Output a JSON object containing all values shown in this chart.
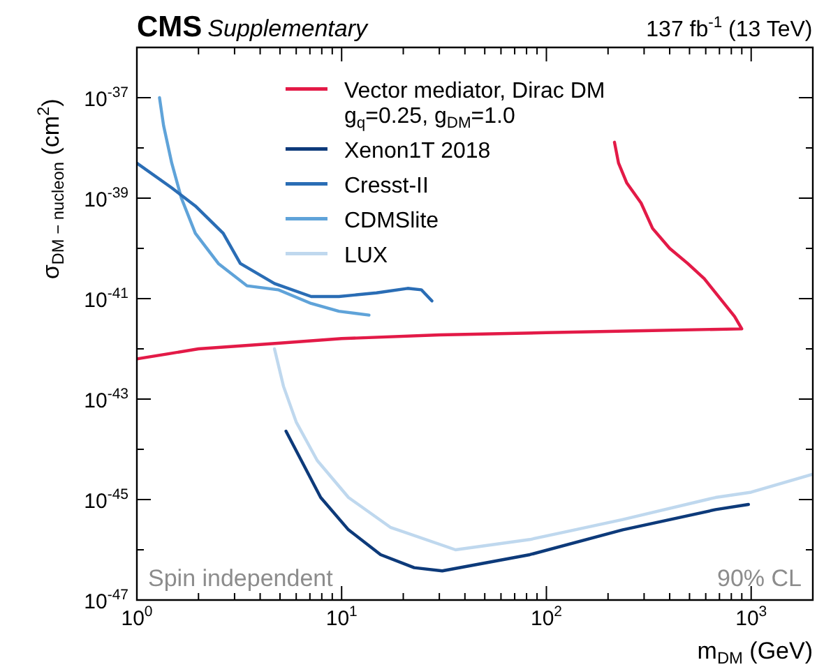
{
  "chart_data": {
    "type": "line",
    "title": "CMS",
    "subtitle": "Supplementary",
    "xlabel": "m$_{DM}$ (GeV)",
    "ylabel": "σ$_{DM − nucleon}$ (cm$^{2}$)",
    "annotations": [
      "137 fb$^{-1}$ (13 TeV)",
      "Spin independent",
      "90% CL"
    ],
    "log": "xy",
    "xlim": [
      1,
      2000
    ],
    "ylim": [
      1e-47,
      1e-36
    ],
    "xticks": [
      {
        "value": 1,
        "label": "10$^{0}$"
      },
      {
        "value": 10,
        "label": "10$^{1}$"
      },
      {
        "value": 100,
        "label": "10$^{2}$"
      },
      {
        "value": 1000,
        "label": "10$^{3}$"
      }
    ],
    "yticks": [
      {
        "value": 1e-47,
        "label": "10$^{-47}$"
      },
      {
        "value": 1e-45,
        "label": "10$^{-45}$"
      },
      {
        "value": 1e-43,
        "label": "10$^{-43}$"
      },
      {
        "value": 1e-41,
        "label": "10$^{-41}$"
      },
      {
        "value": 1e-39,
        "label": "10$^{-39}$"
      },
      {
        "value": 1e-37,
        "label": "10$^{-37}$"
      }
    ],
    "grid": false,
    "legend": "top",
    "marker": "none",
    "line_style": "solid",
    "series": [
      {
        "name": "Vector mediator, Dirac DM\ng$_{q}$=0.25, g$_{DM}$=1.0",
        "color": "#e31a47",
        "x": [
          1,
          2,
          5,
          10,
          30,
          100,
          300,
          900,
          830,
          590,
          490,
          400,
          330,
          290,
          247,
          225,
          215
        ],
        "values": [
          6.3e-43,
          1e-42,
          1.3e-42,
          1.6e-42,
          1.9e-42,
          2.1e-42,
          2.3e-42,
          2.5e-42,
          4.4e-42,
          2.5e-41,
          5e-41,
          1e-40,
          2.5e-40,
          8e-40,
          2e-39,
          5e-39,
          1.3e-38
        ]
      },
      {
        "name": "Xenon1T 2018",
        "color": "#0d3a7a",
        "x": [
          5.35,
          7.9,
          10.8,
          15.5,
          22.6,
          31,
          83,
          236,
          670,
          970
        ],
        "values": [
          2.3e-44,
          1.1e-45,
          2.5e-46,
          8e-47,
          4.4e-47,
          3.8e-47,
          8e-47,
          2.5e-46,
          6.3e-46,
          8e-46
        ]
      },
      {
        "name": "Cresst-II",
        "color": "#2a6db5",
        "x": [
          1,
          1.48,
          1.93,
          2.64,
          3.2,
          4.7,
          7.1,
          9.7,
          14.8,
          21,
          24.5,
          27.6
        ],
        "values": [
          5e-39,
          1.6e-39,
          7e-40,
          2e-40,
          5e-41,
          2e-41,
          1.1e-41,
          1.1e-41,
          1.3e-41,
          1.6e-41,
          1.5e-41,
          9e-42
        ]
      },
      {
        "name": "CDMSlite",
        "color": "#5fa3d9",
        "x": [
          1.29,
          1.35,
          1.48,
          1.65,
          1.93,
          2.5,
          3.45,
          4.9,
          7.1,
          9.7,
          13.6
        ],
        "values": [
          1e-37,
          2.8e-38,
          5e-39,
          1e-39,
          2e-40,
          5e-41,
          1.8e-41,
          1.5e-41,
          8e-42,
          5.6e-42,
          4.7e-42
        ]
      },
      {
        "name": "LUX",
        "color": "#bfd8ee",
        "x": [
          4.7,
          5.2,
          6,
          7.6,
          10.8,
          17.3,
          36,
          83,
          236,
          670,
          1000,
          2000
        ],
        "values": [
          1e-42,
          1.8e-43,
          3.5e-44,
          6e-45,
          1.1e-45,
          2.8e-46,
          1e-46,
          1.6e-46,
          4e-46,
          1.1e-45,
          1.4e-45,
          3.2e-45
        ]
      }
    ]
  }
}
